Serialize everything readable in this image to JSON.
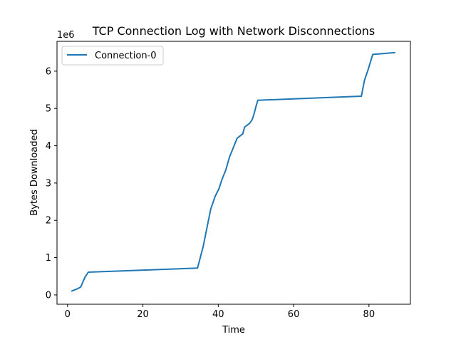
{
  "chart_data": {
    "type": "line",
    "title": "TCP Connection Log with Network Disconnections",
    "xlabel": "Time",
    "ylabel": "Bytes Downloaded",
    "y_offset_label": "1e6",
    "xlim": [
      -2.8,
      91.0
    ],
    "ylim": [
      -250000,
      6800000
    ],
    "xticks": [
      0,
      20,
      40,
      60,
      80
    ],
    "yticks": [
      0,
      1000000,
      2000000,
      3000000,
      4000000,
      5000000,
      6000000
    ],
    "ytick_labels": [
      "0",
      "1",
      "2",
      "3",
      "4",
      "5",
      "6"
    ],
    "grid": false,
    "legend_position": "upper-left",
    "series": [
      {
        "name": "Connection-0",
        "color": "#1f77b4",
        "points": [
          [
            1.0,
            100000
          ],
          [
            2.5,
            160000
          ],
          [
            3.5,
            210000
          ],
          [
            4.0,
            330000
          ],
          [
            4.6,
            470000
          ],
          [
            5.5,
            610000
          ],
          [
            34.5,
            720000
          ],
          [
            36.0,
            1300000
          ],
          [
            38.0,
            2300000
          ],
          [
            39.2,
            2650000
          ],
          [
            40.2,
            2850000
          ],
          [
            41.0,
            3100000
          ],
          [
            42.0,
            3350000
          ],
          [
            43.0,
            3700000
          ],
          [
            45.0,
            4200000
          ],
          [
            46.5,
            4320000
          ],
          [
            47.0,
            4500000
          ],
          [
            48.3,
            4600000
          ],
          [
            49.0,
            4700000
          ],
          [
            49.5,
            4850000
          ],
          [
            50.0,
            5050000
          ],
          [
            50.5,
            5220000
          ],
          [
            78.0,
            5330000
          ],
          [
            78.8,
            5750000
          ],
          [
            79.8,
            6050000
          ],
          [
            81.0,
            6450000
          ],
          [
            87.0,
            6500000
          ]
        ]
      }
    ]
  }
}
